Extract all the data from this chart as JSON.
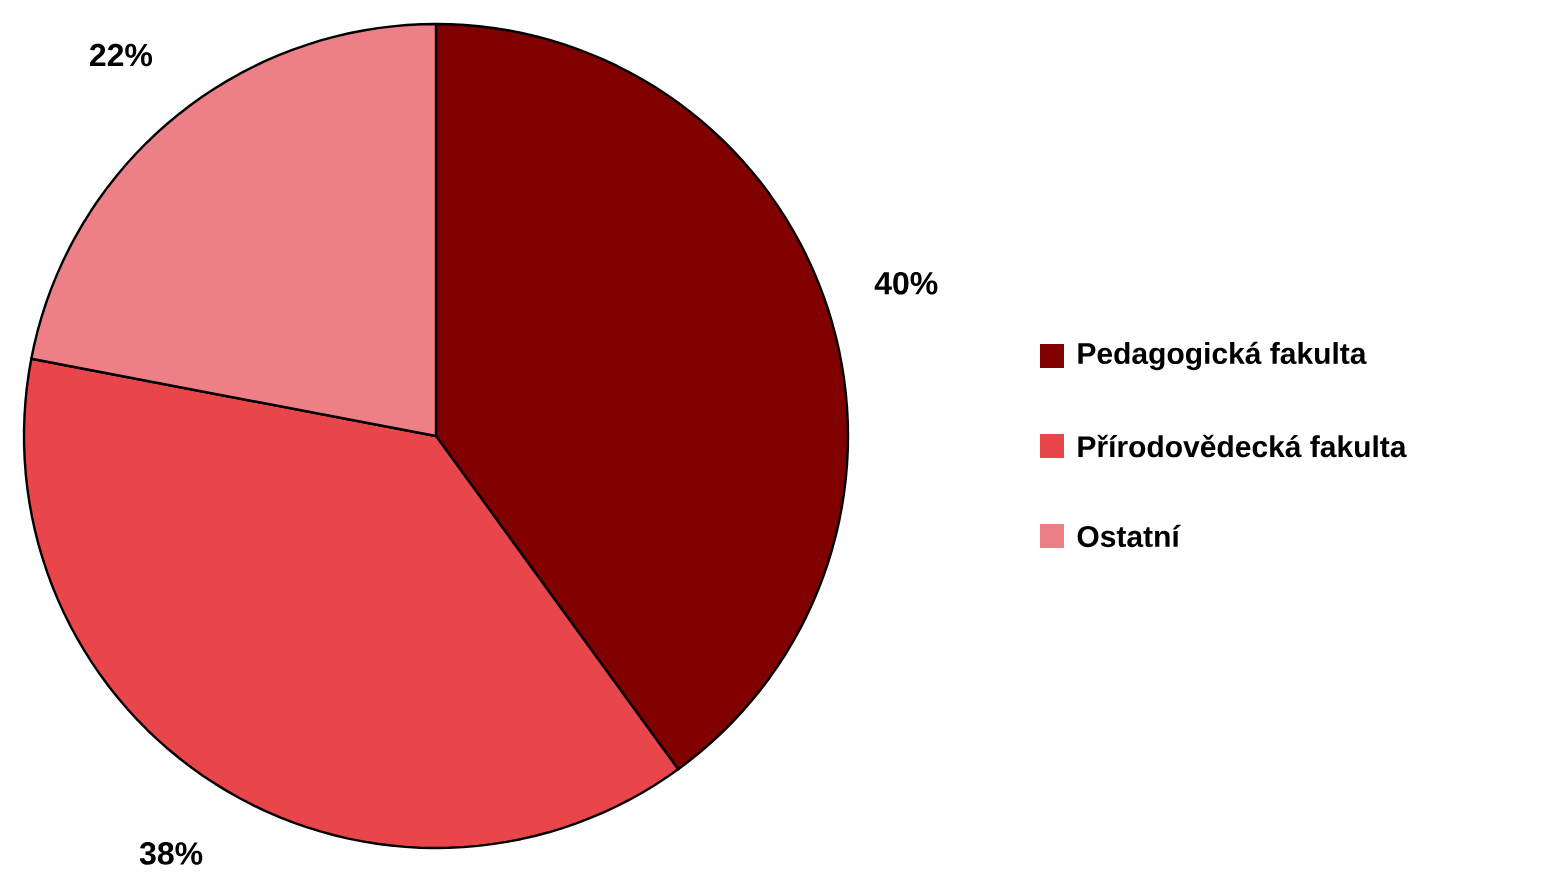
{
  "chart_data": {
    "type": "pie",
    "categories": [
      "Pedagogická fakulta",
      "Přírodovědecká fakulta",
      "Ostatní"
    ],
    "values": [
      40,
      38,
      22
    ],
    "colors": [
      "#800000",
      "#e8464b",
      "#ec8086"
    ],
    "value_labels": [
      "40%",
      "38%",
      "22%"
    ],
    "legend": "right"
  }
}
